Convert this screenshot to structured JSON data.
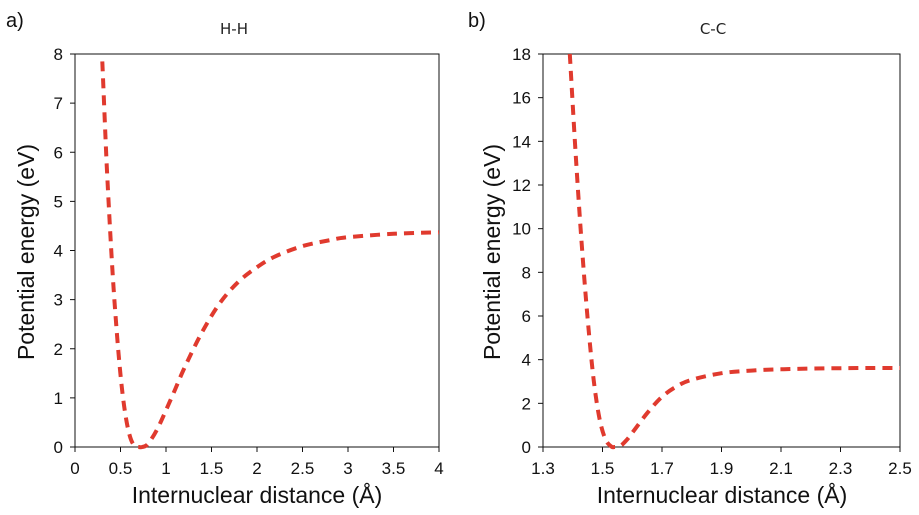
{
  "chart_data": [
    {
      "panel_label": "a)",
      "type": "line",
      "title": "H-H",
      "xlabel": "Internuclear distance (Å)",
      "ylabel": "Potential energy (eV)",
      "xlim": [
        0,
        4
      ],
      "ylim": [
        0,
        8
      ],
      "xticks": [
        0,
        0.5,
        1,
        1.5,
        2,
        2.5,
        3,
        3.5,
        4
      ],
      "xtick_labels": [
        "0",
        "0.5",
        "1",
        "1.5",
        "2",
        "2.5",
        "3",
        "3.5",
        "4"
      ],
      "yticks": [
        0,
        1,
        2,
        3,
        4,
        5,
        6,
        7,
        8
      ],
      "ytick_labels": [
        "0",
        "1",
        "2",
        "3",
        "4",
        "5",
        "6",
        "7",
        "8"
      ],
      "grid": false,
      "series": [
        {
          "color": "#e03a2e",
          "style": "dashed",
          "x": [
            0.3,
            0.35,
            0.4,
            0.45,
            0.5,
            0.55,
            0.6,
            0.65,
            0.7,
            0.74,
            0.8,
            0.9,
            1.0,
            1.1,
            1.2,
            1.4,
            1.6,
            1.8,
            2.0,
            2.2,
            2.5,
            2.8,
            3.0,
            3.5,
            4.0
          ],
          "y": [
            7.85,
            5.7,
            3.95,
            2.55,
            1.47,
            0.7,
            0.24,
            0.03,
            0.0,
            0.0,
            0.06,
            0.35,
            0.75,
            1.17,
            1.6,
            2.35,
            2.95,
            3.37,
            3.66,
            3.88,
            4.09,
            4.21,
            4.27,
            4.34,
            4.37
          ]
        }
      ]
    },
    {
      "panel_label": "b)",
      "type": "line",
      "title": "C-C",
      "xlabel": "Internuclear distance (Å)",
      "ylabel": "Potential energy (eV)",
      "xlim": [
        1.3,
        2.5
      ],
      "ylim": [
        0,
        18
      ],
      "xticks": [
        1.3,
        1.5,
        1.7,
        1.9,
        2.1,
        2.3,
        2.5
      ],
      "xtick_labels": [
        "1.3",
        "1.5",
        "1.7",
        "1.9",
        "2.1",
        "2.3",
        "2.5"
      ],
      "yticks": [
        0,
        2,
        4,
        6,
        8,
        10,
        12,
        14,
        16,
        18
      ],
      "ytick_labels": [
        "0",
        "2",
        "4",
        "6",
        "8",
        "10",
        "12",
        "14",
        "16",
        "18"
      ],
      "grid": false,
      "series": [
        {
          "color": "#e03a2e",
          "style": "dashed",
          "x": [
            1.39,
            1.41,
            1.43,
            1.45,
            1.47,
            1.49,
            1.51,
            1.53,
            1.54,
            1.56,
            1.58,
            1.6,
            1.65,
            1.7,
            1.75,
            1.8,
            1.9,
            2.0,
            2.1,
            2.2,
            2.3,
            2.4,
            2.5
          ],
          "y": [
            18.0,
            13.4,
            9.3,
            5.9,
            3.1,
            1.3,
            0.35,
            0.02,
            0.0,
            0.05,
            0.3,
            0.65,
            1.55,
            2.3,
            2.78,
            3.08,
            3.38,
            3.5,
            3.56,
            3.59,
            3.61,
            3.62,
            3.62
          ]
        }
      ]
    }
  ]
}
